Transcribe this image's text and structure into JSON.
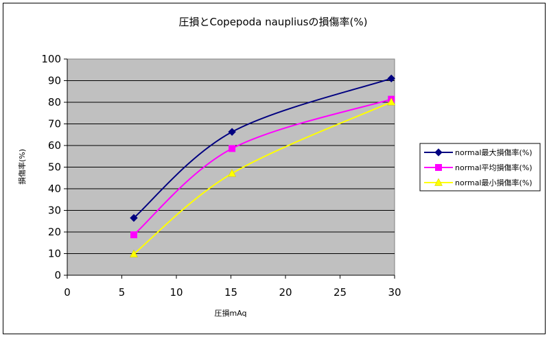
{
  "chart_data": {
    "type": "line",
    "title": "圧損とCopepoda naupliusの損傷率(%)",
    "xlabel": "圧損mAq",
    "ylabel": "損傷率(%)",
    "xlim": [
      0,
      30
    ],
    "ylim": [
      0,
      100
    ],
    "xticks": [
      0,
      5,
      10,
      15,
      20,
      25,
      30
    ],
    "yticks": [
      0,
      10,
      20,
      30,
      40,
      50,
      60,
      70,
      80,
      90,
      100
    ],
    "grid": "horizontal",
    "plot_background": "#c0c0c0",
    "legend_position": "right",
    "series": [
      {
        "name": "normal最大損傷率(%)",
        "color": "#000080",
        "marker": "diamond",
        "x": [
          6.1,
          15.1,
          29.7
        ],
        "y": [
          26.5,
          66.3,
          91.0
        ]
      },
      {
        "name": "normal平均損傷率(%)",
        "color": "#ff00ff",
        "marker": "square",
        "x": [
          6.1,
          15.1,
          29.7
        ],
        "y": [
          18.7,
          58.6,
          81.4
        ]
      },
      {
        "name": "normal最小損傷率(%)",
        "color": "#ffff00",
        "marker": "triangle",
        "x": [
          6.1,
          15.1,
          29.7
        ],
        "y": [
          9.8,
          47.1,
          80.1
        ]
      }
    ]
  }
}
